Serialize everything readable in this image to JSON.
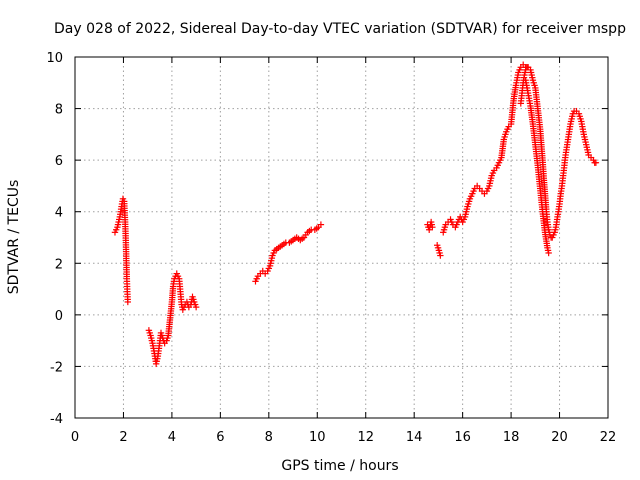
{
  "chart_data": {
    "type": "scatter",
    "title": "Day 028 of 2022, Sidereal Day-to-day VTEC variation (SDTVAR) for receiver mspp",
    "xlabel": "GPS time / hours",
    "ylabel": "SDTVAR / TECUs",
    "xlim": [
      0,
      22
    ],
    "ylim": [
      -4,
      10
    ],
    "xticks": [
      0,
      2,
      4,
      6,
      8,
      10,
      12,
      14,
      16,
      18,
      20,
      22
    ],
    "yticks": [
      -4,
      -2,
      0,
      2,
      4,
      6,
      8,
      10
    ],
    "xtick_labels": [
      "0",
      "2",
      "4",
      "6",
      "8",
      "10",
      "12",
      "14",
      "16",
      "18",
      "20",
      "22"
    ],
    "ytick_labels": [
      "-4",
      "-2",
      "0",
      "2",
      "4",
      "6",
      "8",
      "10"
    ],
    "grid": true,
    "marker": "+",
    "color": "#ff0000",
    "series": [
      {
        "name": "SDTVAR",
        "segments": [
          {
            "x": [
              1.65,
              1.75,
              1.85,
              1.92,
              1.98,
              2.03,
              2.07,
              2.1,
              2.12,
              2.14,
              2.16,
              2.18
            ],
            "y": [
              3.2,
              3.4,
              3.8,
              4.2,
              4.5,
              4.4,
              3.6,
              2.8,
              2.1,
              1.4,
              0.9,
              0.5
            ]
          },
          {
            "x": [
              3.05,
              3.12,
              3.2,
              3.28,
              3.35,
              3.42,
              3.48,
              3.55,
              3.62,
              3.7,
              3.78,
              3.85,
              3.92,
              4.0,
              4.05,
              4.1,
              4.15,
              4.2,
              4.25,
              4.3,
              4.35,
              4.4,
              4.45,
              4.5,
              4.55,
              4.62,
              4.7,
              4.78,
              4.85,
              4.92,
              5.0
            ],
            "y": [
              -0.6,
              -0.8,
              -1.1,
              -1.5,
              -1.9,
              -1.6,
              -1.2,
              -0.7,
              -0.9,
              -1.1,
              -1.0,
              -0.8,
              -0.2,
              0.5,
              1.1,
              1.4,
              1.5,
              1.6,
              1.5,
              1.4,
              0.9,
              0.4,
              0.2,
              0.3,
              0.4,
              0.5,
              0.3,
              0.4,
              0.7,
              0.5,
              0.3
            ]
          },
          {
            "x": [
              7.45,
              7.55,
              7.65,
              7.75,
              7.85,
              7.95,
              8.05,
              8.15,
              8.25,
              8.4,
              8.55,
              8.7,
              8.85,
              9.0,
              9.15,
              9.3,
              9.45,
              9.6,
              9.75,
              9.9,
              10.05,
              10.15
            ],
            "y": [
              1.3,
              1.5,
              1.6,
              1.7,
              1.6,
              1.7,
              1.9,
              2.3,
              2.5,
              2.6,
              2.7,
              2.8,
              2.8,
              2.9,
              3.0,
              2.9,
              3.0,
              3.2,
              3.3,
              3.3,
              3.4,
              3.5
            ]
          },
          {
            "x": [
              14.55,
              14.62,
              14.7,
              14.75
            ],
            "y": [
              3.5,
              3.3,
              3.6,
              3.4
            ]
          },
          {
            "x": [
              14.95,
              15.02,
              15.08
            ],
            "y": [
              2.7,
              2.5,
              2.3
            ]
          },
          {
            "x": [
              15.2,
              15.3,
              15.4,
              15.5,
              15.6,
              15.7,
              15.8,
              15.9,
              16.0,
              16.1,
              16.2,
              16.3,
              16.4,
              16.5,
              16.6,
              16.7,
              16.8,
              16.9,
              17.0,
              17.1,
              17.2,
              17.3,
              17.4,
              17.5,
              17.6,
              17.7,
              17.8,
              17.9,
              18.0,
              18.1,
              18.2,
              18.3,
              18.4,
              18.5,
              18.6,
              18.7,
              18.8,
              18.9,
              19.0,
              19.1,
              19.2,
              19.25,
              19.3,
              19.35,
              19.4,
              19.45,
              19.5,
              19.55,
              19.6,
              19.65,
              19.7,
              19.75,
              19.8,
              19.85,
              19.9,
              19.95,
              20.0,
              20.05,
              20.1,
              20.15,
              20.2,
              20.25,
              20.3,
              20.35,
              20.4,
              20.45,
              20.5,
              20.55,
              20.6,
              20.7,
              20.8,
              20.9,
              21.0,
              21.1,
              21.2,
              21.3,
              21.4,
              21.45,
              21.5
            ],
            "y": [
              3.2,
              3.5,
              3.6,
              3.7,
              3.5,
              3.4,
              3.6,
              3.8,
              3.6,
              3.8,
              4.2,
              4.5,
              4.7,
              4.9,
              5.0,
              4.9,
              4.8,
              4.7,
              4.8,
              5.0,
              5.4,
              5.6,
              5.7,
              5.9,
              6.1,
              6.8,
              7.1,
              7.3,
              7.4,
              8.3,
              8.9,
              9.4,
              9.6,
              9.7,
              9.6,
              9.6,
              9.5,
              9.1,
              8.8,
              8.0,
              7.2,
              6.6,
              6.0,
              5.3,
              4.7,
              4.1,
              3.6,
              3.3,
              3.1,
              3.0,
              3.0,
              3.1,
              3.2,
              3.4,
              3.7,
              4.0,
              4.3,
              4.7,
              5.0,
              5.4,
              5.8,
              6.2,
              6.5,
              6.8,
              7.1,
              7.4,
              7.6,
              7.8,
              7.9,
              7.9,
              7.8,
              7.5,
              7.0,
              6.6,
              6.2,
              6.1,
              6.0,
              5.9,
              5.9
            ]
          },
          {
            "x": [
              18.6,
              18.7,
              18.8,
              18.9,
              19.0,
              19.1,
              19.2,
              19.3,
              19.4,
              19.5,
              19.55
            ],
            "y": [
              9.1,
              8.6,
              8.1,
              7.4,
              6.6,
              5.8,
              4.9,
              4.0,
              3.2,
              2.6,
              2.4
            ]
          },
          {
            "x": [
              18.4,
              18.45,
              18.5,
              18.55,
              18.6,
              18.65,
              18.7
            ],
            "y": [
              8.2,
              8.6,
              9.0,
              9.3,
              9.5,
              9.6,
              9.6
            ]
          }
        ]
      }
    ]
  }
}
